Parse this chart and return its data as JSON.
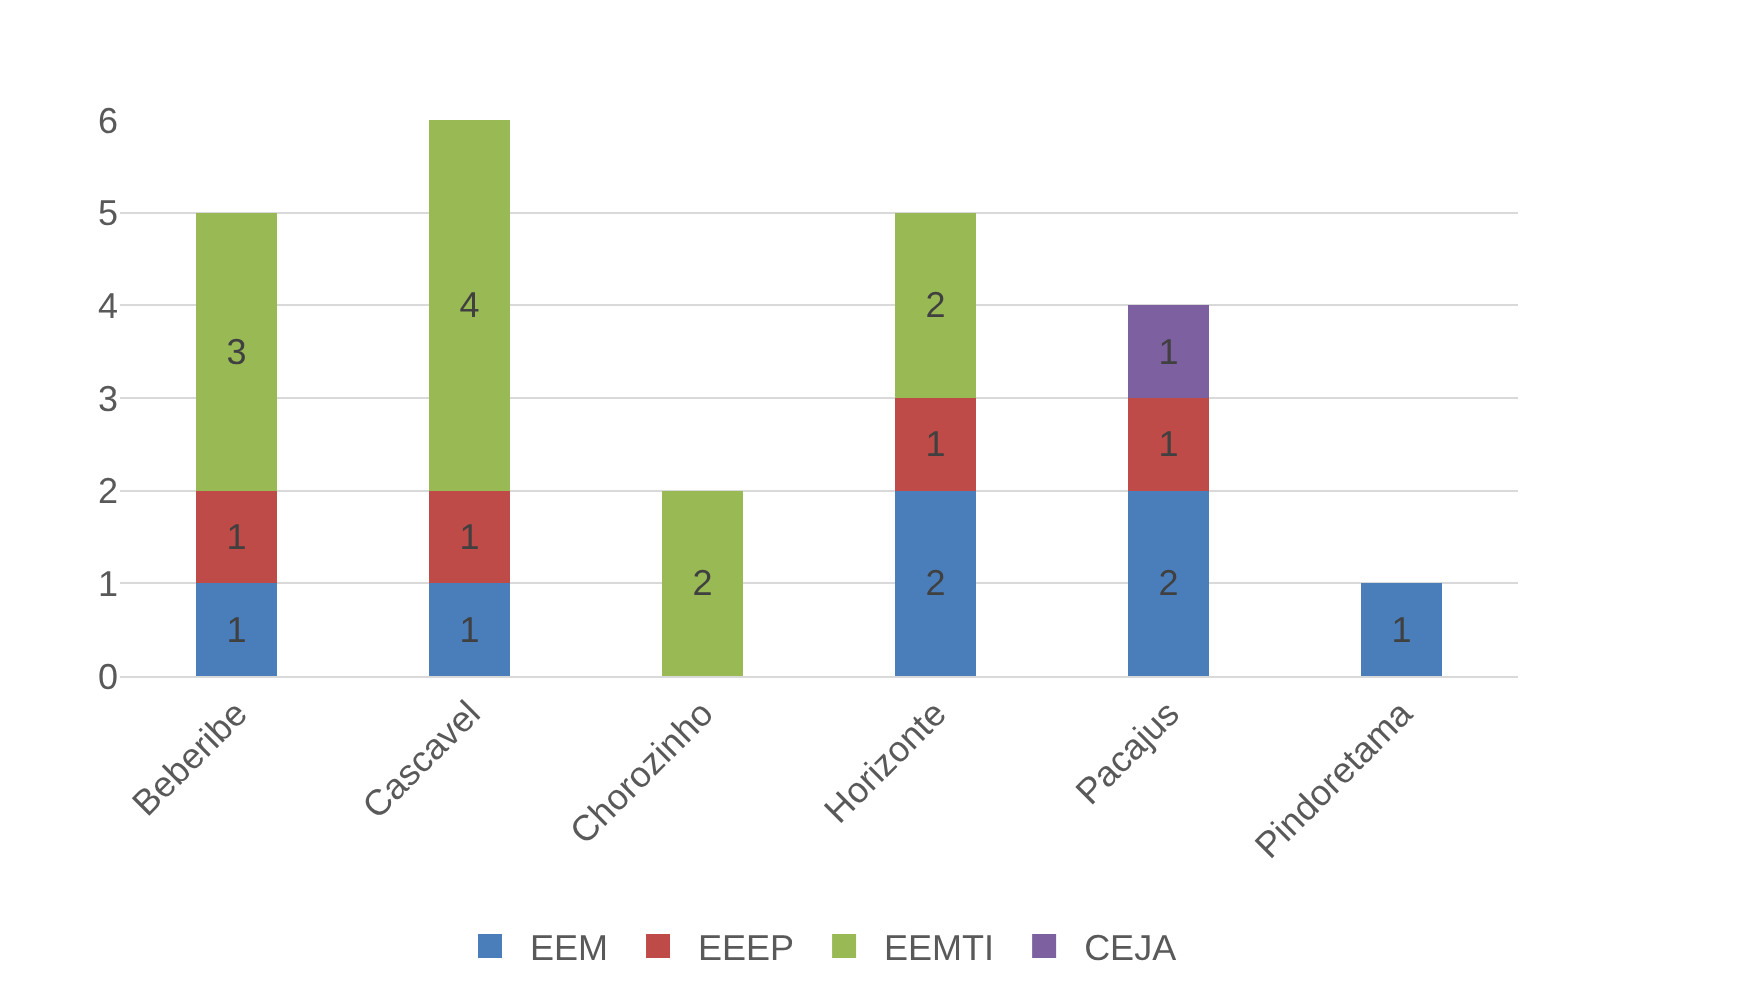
{
  "chart_data": {
    "type": "bar",
    "stacked": true,
    "categories": [
      "Beberibe",
      "Cascavel",
      "Chorozinho",
      "Horizonte",
      "Pacajus",
      "Pindoretama"
    ],
    "series": [
      {
        "name": "EEM",
        "color": "#4a7ebb",
        "values": [
          1,
          1,
          null,
          2,
          2,
          1
        ]
      },
      {
        "name": "EEEP",
        "color": "#be4b48",
        "values": [
          1,
          1,
          null,
          1,
          1,
          null
        ]
      },
      {
        "name": "EEMTI",
        "color": "#98b954",
        "values": [
          3,
          4,
          2,
          2,
          null,
          null
        ]
      },
      {
        "name": "CEJA",
        "color": "#7d60a0",
        "values": [
          null,
          null,
          null,
          null,
          1,
          null
        ]
      }
    ],
    "ylim": [
      0,
      6
    ],
    "yticks": [
      0,
      1,
      2,
      3,
      4,
      5,
      6
    ],
    "grid": "y",
    "legend": "bottom",
    "data_labels": true
  }
}
